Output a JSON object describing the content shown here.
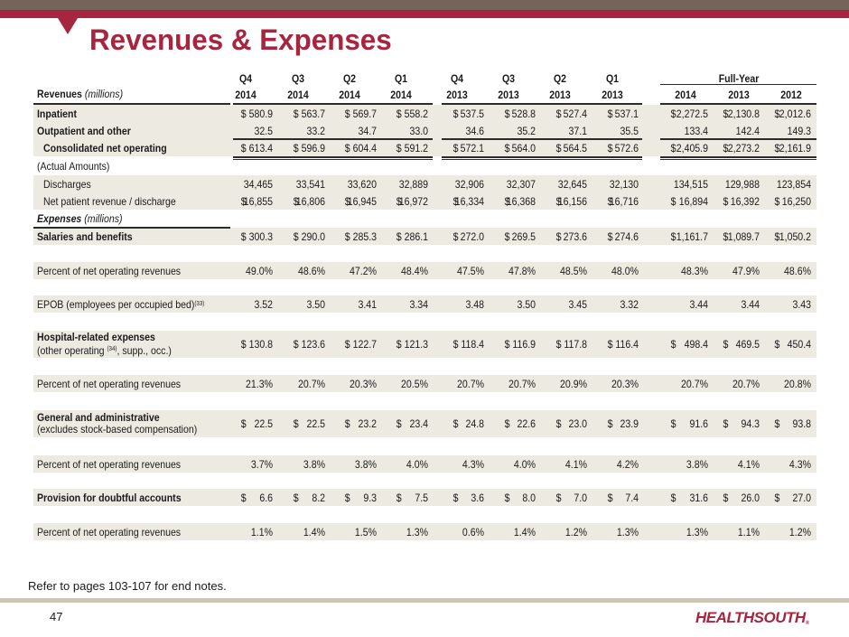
{
  "slide": {
    "title": "Revenues & Expenses",
    "footnote": "Refer to pages 103-107 for end notes.",
    "page_number": "47",
    "logo_text": "HEALTHSOUTH",
    "logo_mark": "®",
    "colors": {
      "brand_red": "#a6253f",
      "top_band": "#76645a",
      "row_shade": "#edeae2",
      "footer_band": "#cdc6b6"
    }
  },
  "table": {
    "section_label": "Revenues",
    "section_unit": "(millions)",
    "full_year_label": "Full-Year",
    "columns": [
      {
        "q": "Q4",
        "year": "2014"
      },
      {
        "q": "Q3",
        "year": "2014"
      },
      {
        "q": "Q2",
        "year": "2014"
      },
      {
        "q": "Q1",
        "year": "2014"
      },
      {
        "q": "Q4",
        "year": "2013"
      },
      {
        "q": "Q3",
        "year": "2013"
      },
      {
        "q": "Q2",
        "year": "2013"
      },
      {
        "q": "Q1",
        "year": "2013"
      },
      {
        "q": "",
        "year": "2014"
      },
      {
        "q": "",
        "year": "2013"
      },
      {
        "q": "",
        "year": "2012"
      }
    ],
    "rows": [
      {
        "label": "Inpatient",
        "style": "bold",
        "shaded": true,
        "dollar": true,
        "values": [
          "580.9",
          "563.7",
          "569.7",
          "558.2",
          "537.5",
          "528.8",
          "527.4",
          "537.1",
          "2,272.5",
          "2,130.8",
          "2,012.6"
        ]
      },
      {
        "label": "Outpatient and other",
        "style": "bold",
        "shaded": true,
        "dollar": false,
        "values": [
          "32.5",
          "33.2",
          "34.7",
          "33.0",
          "34.6",
          "35.2",
          "37.1",
          "35.5",
          "133.4",
          "142.4",
          "149.3"
        ]
      },
      {
        "label": "Consolidated net operating",
        "style": "bold-indent",
        "shaded": true,
        "dollar": true,
        "values": [
          "613.4",
          "596.9",
          "604.4",
          "591.2",
          "572.1",
          "564.0",
          "564.5",
          "572.6",
          "2,405.9",
          "2,273.2",
          "2,161.9"
        ]
      },
      {
        "label": "(Actual Amounts)",
        "style": "plain",
        "shaded": false,
        "dollar": false,
        "values": []
      },
      {
        "label": "Discharges",
        "style": "indent",
        "shaded": true,
        "dollar": false,
        "values": [
          "34,465",
          "33,541",
          "33,620",
          "32,889",
          "32,906",
          "32,307",
          "32,645",
          "32,130",
          "134,515",
          "129,988",
          "123,854"
        ]
      },
      {
        "label": "Net patient revenue / discharge",
        "style": "indent",
        "shaded": true,
        "dollar": true,
        "values": [
          "16,855",
          "16,806",
          "16,945",
          "16,972",
          "16,334",
          "16,368",
          "16,156",
          "16,716",
          "16,894",
          "16,392",
          "16,250"
        ]
      },
      {
        "label": "Expenses",
        "label_unit": "(millions)",
        "style": "section",
        "shaded": false,
        "dollar": false,
        "values": []
      },
      {
        "label": "Salaries and benefits",
        "style": "bold",
        "shaded": true,
        "dollar": true,
        "values": [
          "300.3",
          "290.0",
          "285.3",
          "286.1",
          "272.0",
          "269.5",
          "273.6",
          "274.6",
          "1,161.7",
          "1,089.7",
          "1,050.2"
        ]
      },
      {
        "label": "Percent of net operating revenues",
        "style": "plain",
        "shaded": true,
        "dollar": false,
        "values": [
          "49.0%",
          "48.6%",
          "47.2%",
          "48.4%",
          "47.5%",
          "47.8%",
          "48.5%",
          "48.0%",
          "48.3%",
          "47.9%",
          "48.6%"
        ]
      },
      {
        "label": "EPOB (employees per occupied bed)",
        "label_sup": "(33)",
        "style": "plain",
        "shaded": true,
        "dollar": false,
        "values": [
          "3.52",
          "3.50",
          "3.41",
          "3.34",
          "3.48",
          "3.50",
          "3.45",
          "3.32",
          "3.44",
          "3.44",
          "3.43"
        ]
      },
      {
        "label": "Hospital-related expenses",
        "label_line2": "(other operating ",
        "label_line2_sup": "(34)",
        "label_line2_tail": ", supp., occ.)",
        "style": "two-line",
        "shaded": true,
        "dollar": true,
        "values": [
          "130.8",
          "123.6",
          "122.7",
          "121.3",
          "118.4",
          "116.9",
          "117.8",
          "116.4",
          "498.4",
          "469.5",
          "450.4"
        ]
      },
      {
        "label": "Percent of net operating revenues",
        "style": "plain",
        "shaded": true,
        "dollar": false,
        "values": [
          "21.3%",
          "20.7%",
          "20.3%",
          "20.5%",
          "20.7%",
          "20.7%",
          "20.9%",
          "20.3%",
          "20.7%",
          "20.7%",
          "20.8%"
        ]
      },
      {
        "label": "General and administrative",
        "label_line2": "(excludes stock-based compensation)",
        "style": "two-line",
        "shaded": true,
        "dollar": true,
        "values": [
          "22.5",
          "22.5",
          "23.2",
          "23.4",
          "24.8",
          "22.6",
          "23.0",
          "23.9",
          "91.6",
          "94.3",
          "93.8"
        ]
      },
      {
        "label": "Percent of net operating revenues",
        "style": "plain",
        "shaded": true,
        "dollar": false,
        "values": [
          "3.7%",
          "3.8%",
          "3.8%",
          "4.0%",
          "4.3%",
          "4.0%",
          "4.1%",
          "4.2%",
          "3.8%",
          "4.1%",
          "4.3%"
        ]
      },
      {
        "label": "Provision for doubtful accounts",
        "style": "bold",
        "shaded": true,
        "dollar": true,
        "values": [
          "6.6",
          "8.2",
          "9.3",
          "7.5",
          "3.6",
          "8.0",
          "7.0",
          "7.4",
          "31.6",
          "26.0",
          "27.0"
        ]
      },
      {
        "label": "Percent of net operating revenues",
        "style": "plain",
        "shaded": true,
        "dollar": false,
        "values": [
          "1.1%",
          "1.4%",
          "1.5%",
          "1.3%",
          "0.6%",
          "1.4%",
          "1.2%",
          "1.3%",
          "1.3%",
          "1.1%",
          "1.2%"
        ]
      }
    ]
  }
}
